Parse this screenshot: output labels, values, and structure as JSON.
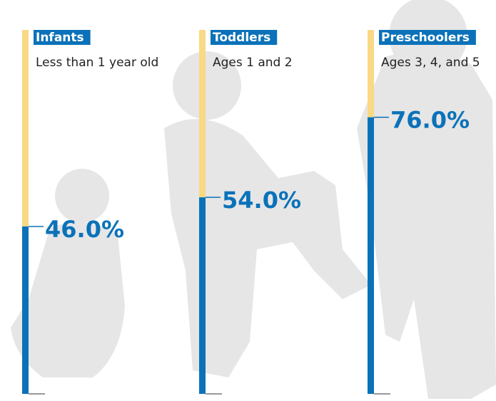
{
  "chart_data": {
    "type": "bar",
    "categories": [
      "Infants",
      "Toddlers",
      "Preschoolers"
    ],
    "subtitles": [
      "Less than 1 year old",
      "Ages 1 and 2",
      "Ages 3, 4, and 5"
    ],
    "values": [
      46,
      54,
      76
    ],
    "value_labels": [
      "46.0%",
      "54.0%",
      "76.0%"
    ],
    "color": "#0b72b9",
    "track_color": "#fad985",
    "ylim": [
      0,
      100
    ]
  }
}
